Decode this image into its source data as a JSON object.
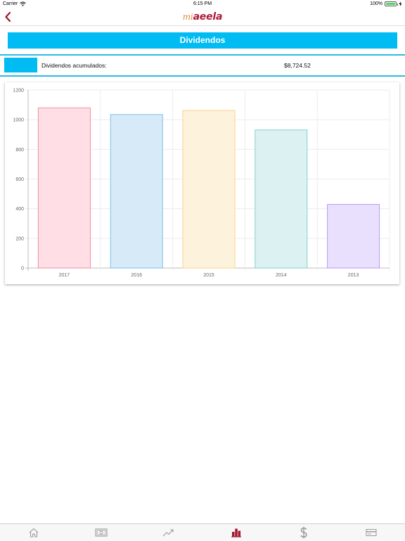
{
  "status_bar": {
    "carrier": "Carrier",
    "time": "6:15 PM",
    "battery": "100%"
  },
  "nav": {
    "logo_mi": "mi",
    "logo_aeela": "aeela"
  },
  "page_title": "Dividendos",
  "summary": {
    "label": "Dividendos acumulados:",
    "value": "$8,724.52"
  },
  "chart_data": {
    "type": "bar",
    "categories": [
      "2017",
      "2016",
      "2015",
      "2014",
      "2013"
    ],
    "values": [
      1080,
      1035,
      1062,
      931,
      429
    ],
    "ylim": [
      0,
      1200
    ],
    "yticks": [
      0,
      200,
      400,
      600,
      800,
      1000,
      1200
    ],
    "grid": true,
    "colors": {
      "fills": [
        "#ffdfe5",
        "#d7eaf8",
        "#fdf2dc",
        "#dbf1f2",
        "#e9e0fd"
      ],
      "strokes": [
        "#f48ea5",
        "#7ec0ec",
        "#f9d588",
        "#86cfcf",
        "#b79cf5"
      ]
    }
  },
  "tab_bar": {
    "items": [
      "home-icon",
      "money-icon",
      "trend-icon",
      "bar-chart-icon",
      "dollar-icon",
      "card-icon"
    ],
    "active_index": 3,
    "active_color": "#a0172f",
    "inactive_color": "#9a9a9a"
  }
}
